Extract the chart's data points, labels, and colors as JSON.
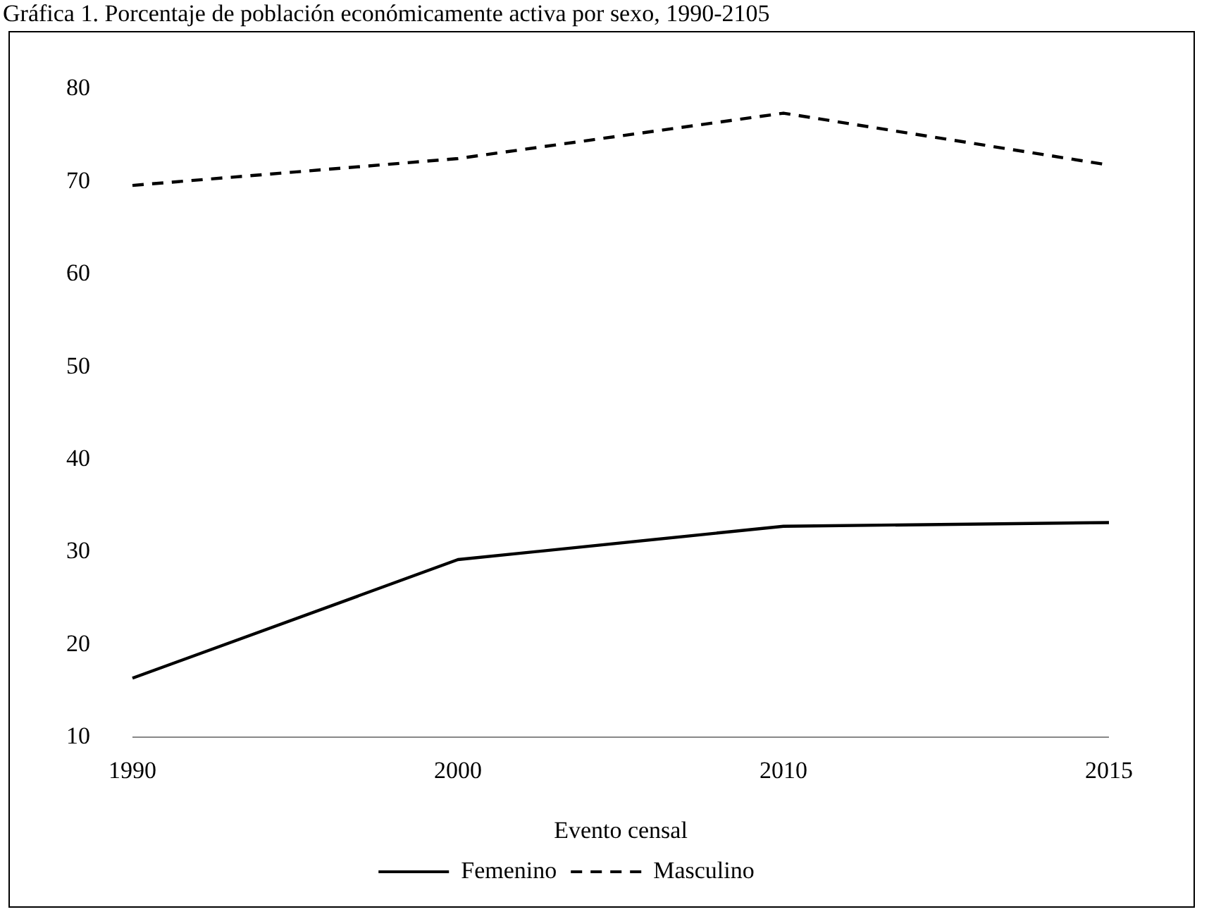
{
  "chart_data": {
    "type": "line",
    "title": "Gráfica 1. Porcentaje de población económicamente activa por sexo, 1990-2105",
    "xlabel": "Evento censal",
    "categories": [
      "1990",
      "2000",
      "2010",
      "2015"
    ],
    "series": [
      {
        "name": "Femenino",
        "color": "#000000",
        "values": [
          16.4,
          29.2,
          32.8,
          33.2
        ],
        "line_style": "solid"
      },
      {
        "name": "Masculino",
        "color": "#000000",
        "values": [
          69.6,
          72.5,
          77.4,
          71.8
        ],
        "line_style": "dashed"
      }
    ],
    "ylim": [
      10,
      80
    ],
    "yticks": [
      10,
      20,
      30,
      40,
      50,
      60,
      70,
      80
    ],
    "grid": false,
    "legend": "bottom",
    "marker": "none"
  }
}
